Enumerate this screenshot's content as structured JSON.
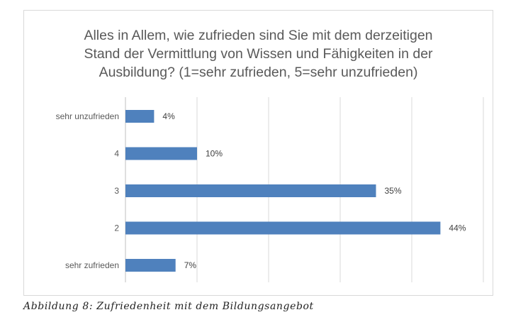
{
  "chart_data": {
    "type": "bar",
    "orientation": "horizontal",
    "title": "Alles in Allem, wie zufrieden sind Sie mit dem derzeitigen\nStand der Vermittlung von Wissen und Fähigkeiten in der\nAusbildung? (1=sehr zufrieden, 5=sehr unzufrieden)",
    "categories": [
      "sehr unzufrieden",
      "4",
      "3",
      "2",
      "sehr zufrieden"
    ],
    "values": [
      4,
      10,
      35,
      44,
      7
    ],
    "value_labels": [
      "4%",
      "10%",
      "35%",
      "44%",
      "7%"
    ],
    "xlim": [
      0,
      50
    ],
    "grid": true,
    "bar_color": "#4f81bd",
    "legend": false
  },
  "caption": "Abbildung 8: Zufriedenheit mit dem Bildungsangebot"
}
